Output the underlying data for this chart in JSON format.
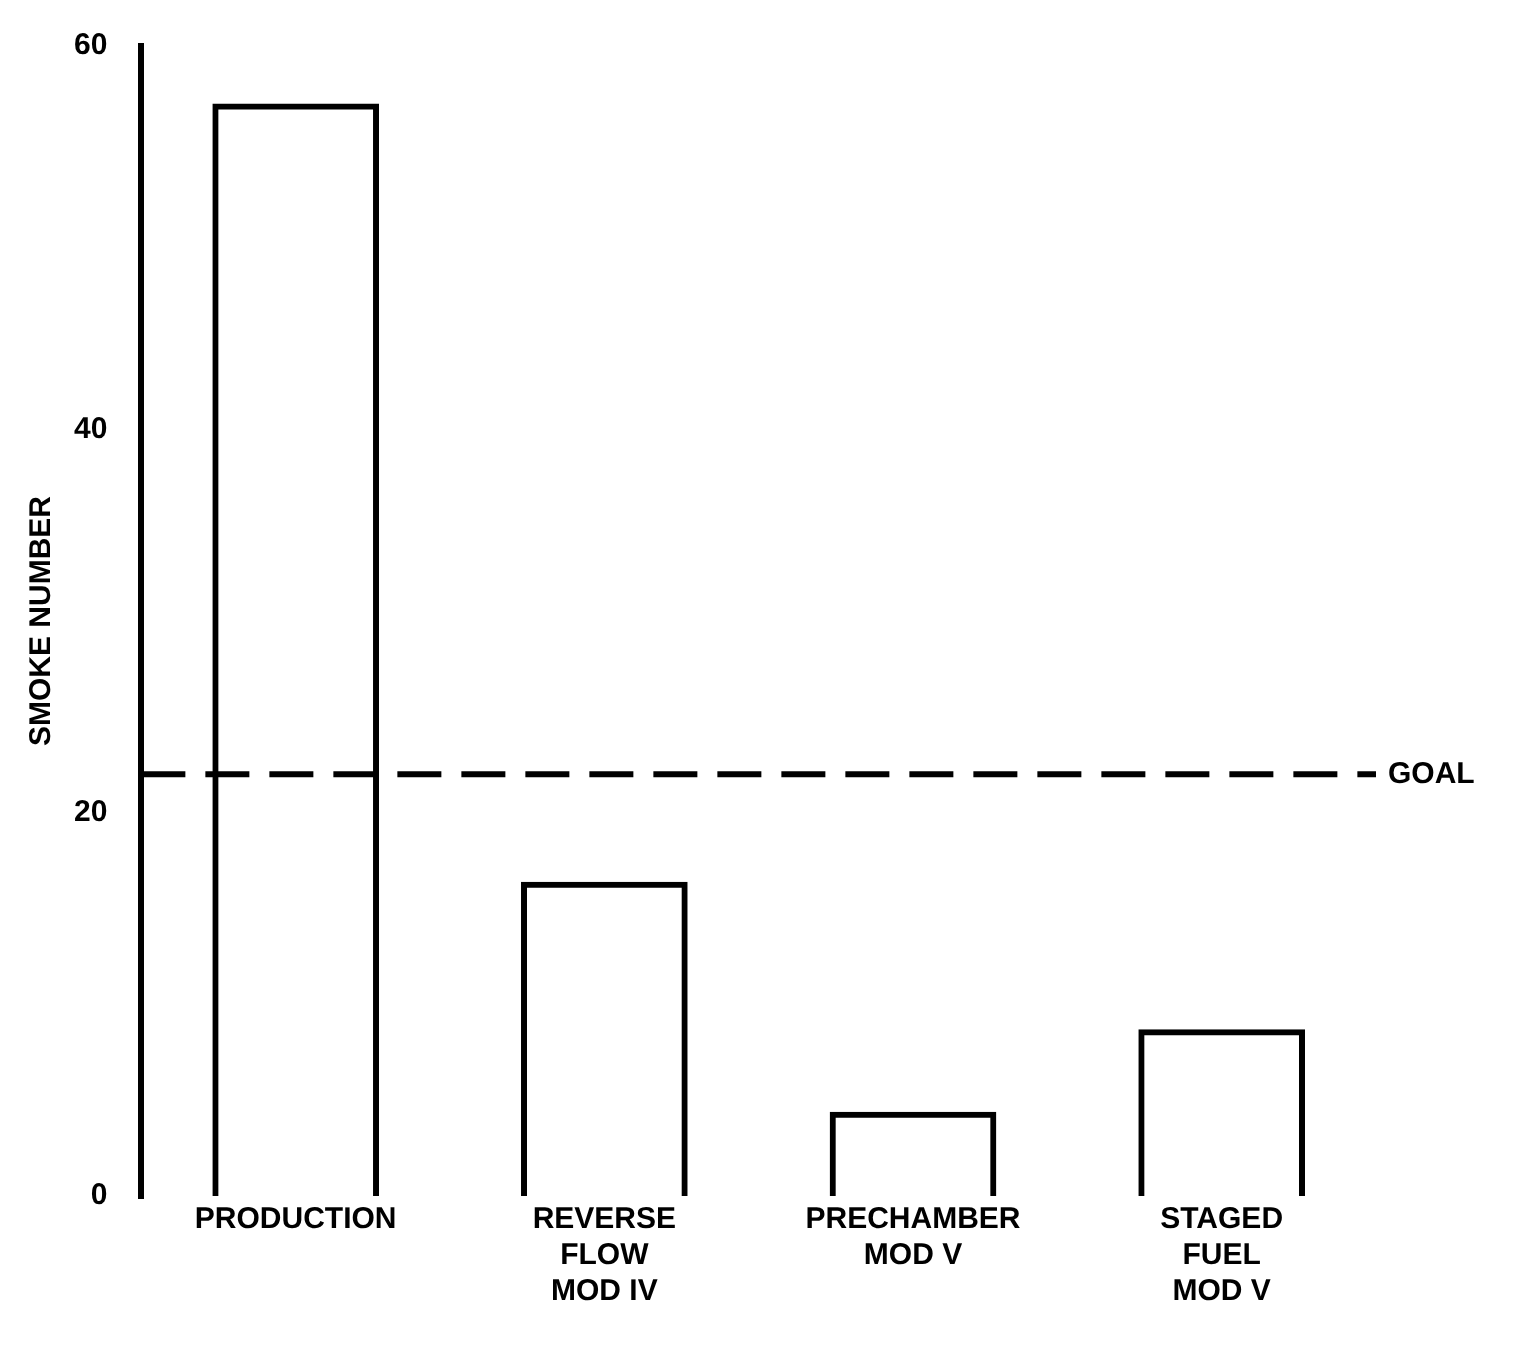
{
  "chart_data": {
    "type": "bar",
    "ylabel": "SMOKE NUMBER",
    "categories": [
      "PRODUCTION",
      "REVERSE\nFLOW\nMOD IV",
      "PRECHAMBER\nMOD V",
      "STAGED\nFUEL\nMOD V"
    ],
    "values": [
      57,
      16.4,
      4.4,
      8.7
    ],
    "color": "#000000",
    "ylim": [
      0,
      60
    ],
    "yticks": [
      0,
      20,
      40,
      60
    ],
    "grid": false,
    "legend": false,
    "ref_lines": [
      {
        "axis": "y",
        "value": 22,
        "label": "GOAL",
        "color": "#000000",
        "line_style": "dashed"
      }
    ]
  }
}
